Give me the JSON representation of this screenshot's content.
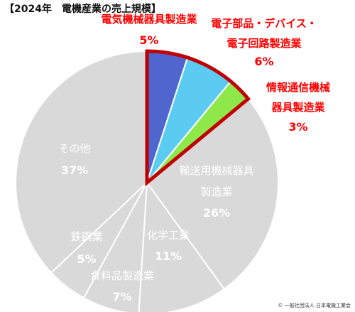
{
  "chart_data": {
    "type": "pie",
    "title": "【2024年　電機産業の売上規模】",
    "unit": "%",
    "slices": [
      {
        "label": [
          "電気機械器具製造業"
        ],
        "value": 5,
        "color": "#4f66cf",
        "highlight": true
      },
      {
        "label": [
          "電子部品・デバイス・",
          "電子回路製造業"
        ],
        "value": 6,
        "color": "#5ccbf2",
        "highlight": true
      },
      {
        "label": [
          "情報通信機械",
          "器具製造業"
        ],
        "value": 3,
        "color": "#8fe84a",
        "highlight": true
      },
      {
        "label": [
          "輸送用機械器具",
          "製造業"
        ],
        "value": 26,
        "color": "#d9d9d9",
        "highlight": false
      },
      {
        "label": [
          "化学工業"
        ],
        "value": 11,
        "color": "#d9d9d9",
        "highlight": false
      },
      {
        "label": [
          "食料品製造業"
        ],
        "value": 7,
        "color": "#d9d9d9",
        "highlight": false
      },
      {
        "label": [
          "鉄鋼業"
        ],
        "value": 5,
        "color": "#d9d9d9",
        "highlight": false
      },
      {
        "label": [
          "その他"
        ],
        "value": 37,
        "color": "#d9d9d9",
        "highlight": false
      }
    ],
    "highlight_border_color": "#c00000",
    "outside_label_color": "#ff0000",
    "inside_label_color": "#ffffff"
  },
  "credit": "© 一般社団法人 日本電機工業会"
}
